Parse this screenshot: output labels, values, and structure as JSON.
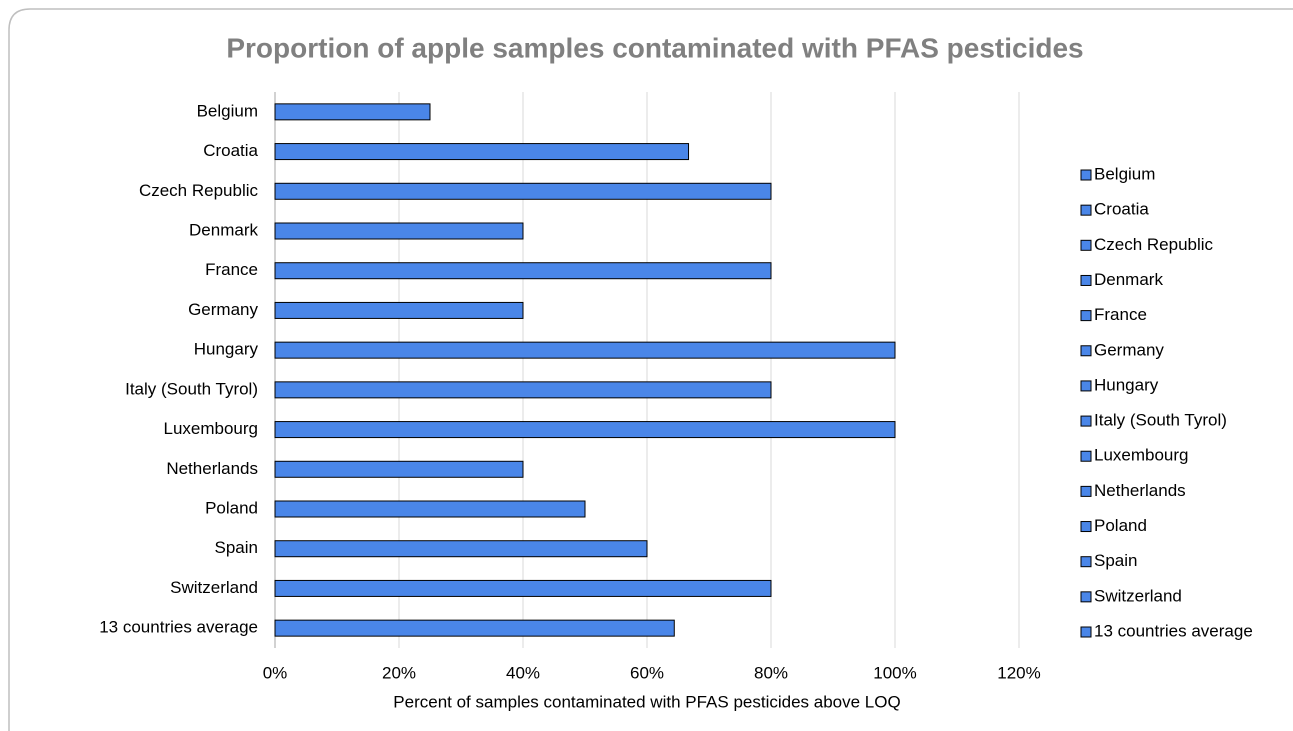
{
  "chart_data": {
    "type": "bar",
    "orientation": "horizontal",
    "title": "Proportion of apple samples contaminated with PFAS pesticides",
    "x_label": "Percent of samples contaminated with PFAS pesticides above LOQ",
    "categories": [
      "Belgium",
      "Croatia",
      "Czech Republic",
      "Denmark",
      "France",
      "Germany",
      "Hungary",
      "Italy (South Tyrol)",
      "Luxembourg",
      "Netherlands",
      "Poland",
      "Spain",
      "Switzerland",
      "13 countries average"
    ],
    "values": [
      25,
      66.7,
      80,
      40,
      80,
      40,
      100,
      80,
      100,
      40,
      50,
      60,
      80,
      64.4
    ],
    "color": "#4a86e8",
    "xlim": [
      0,
      120
    ],
    "xticks": [
      {
        "value": 0,
        "label": "0%"
      },
      {
        "value": 20,
        "label": "20%"
      },
      {
        "value": 40,
        "label": "40%"
      },
      {
        "value": 60,
        "label": "60%"
      },
      {
        "value": 80,
        "label": "80%"
      },
      {
        "value": 100,
        "label": "100%"
      },
      {
        "value": 120,
        "label": "120%"
      }
    ],
    "grid": true,
    "legend": "right"
  }
}
